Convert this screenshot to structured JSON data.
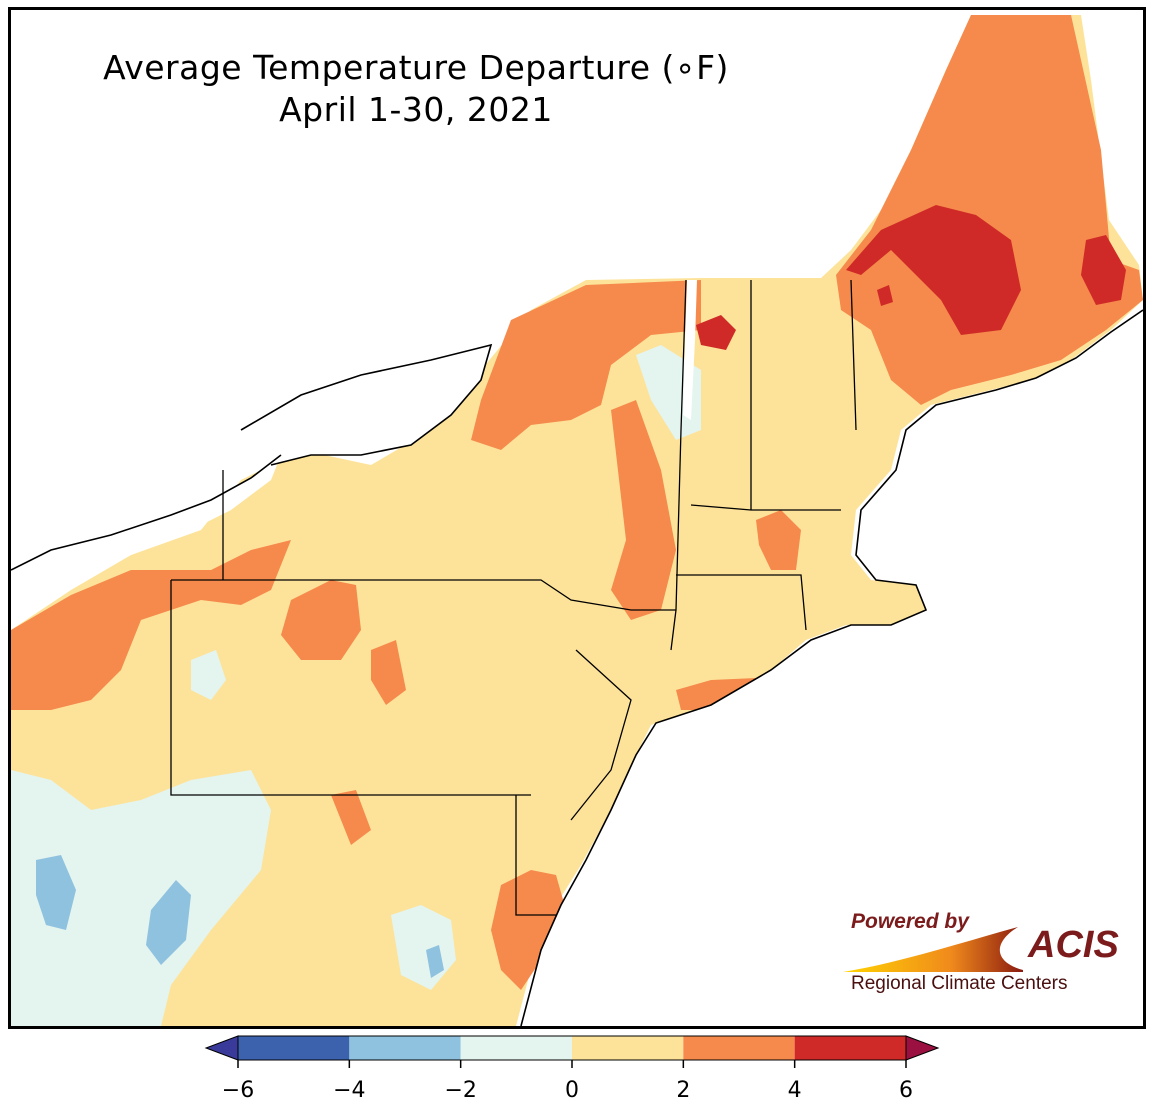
{
  "title": {
    "line1": "Average Temperature Departure (∘F)",
    "line2": "April 1-30, 2021"
  },
  "legend": {
    "ticks": [
      "−6",
      "−4",
      "−2",
      "0",
      "2",
      "4",
      "6"
    ],
    "bins": [
      {
        "from": -6,
        "to": -4,
        "color": "#3d62ad"
      },
      {
        "from": -4,
        "to": -2,
        "color": "#8fc2df"
      },
      {
        "from": -2,
        "to": 0,
        "color": "#e4f4ef"
      },
      {
        "from": 0,
        "to": 2,
        "color": "#fde39a"
      },
      {
        "from": 2,
        "to": 4,
        "color": "#f58a4c"
      },
      {
        "from": 4,
        "to": 6,
        "color": "#cf2a27"
      }
    ],
    "under_color": "#3a3a9a",
    "over_color": "#9a1040"
  },
  "colors": {
    "land_base": "#fde39a",
    "water": "#ffffff",
    "state_border": "#000000",
    "county_border": "#9a9a9a"
  },
  "logo": {
    "powered_by": "Powered by",
    "brand": "ACIS",
    "subtitle": "Regional Climate Centers"
  }
}
